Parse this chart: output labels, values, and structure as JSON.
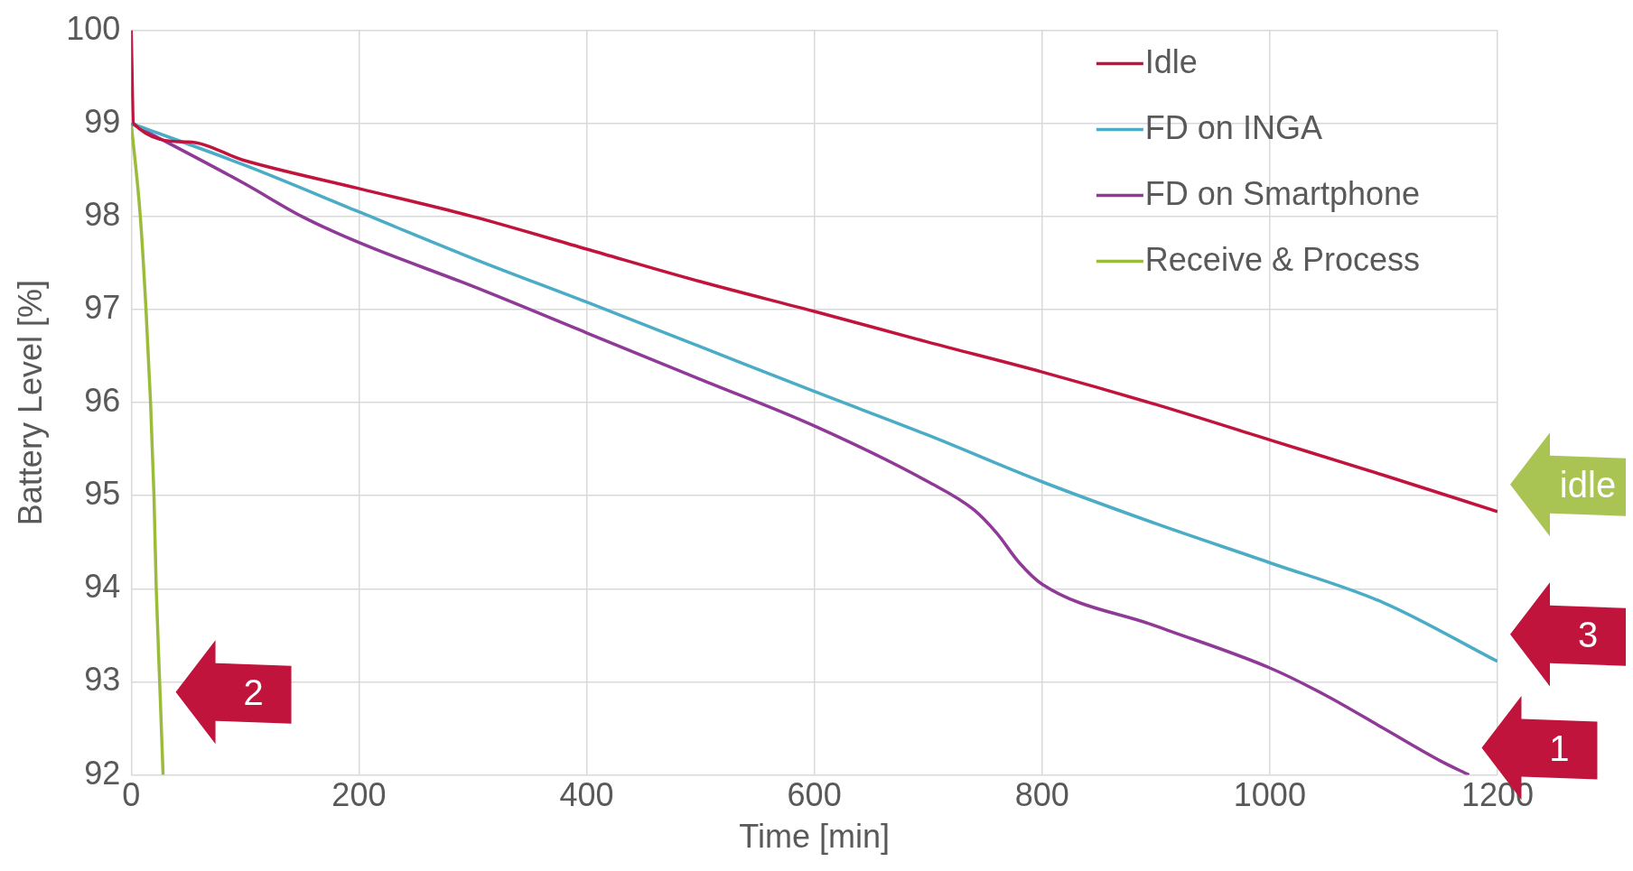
{
  "chart_data": {
    "type": "line",
    "xlabel": "Time [min]",
    "ylabel": "Battery Level [%]",
    "xlim": [
      0,
      1200
    ],
    "xticks": [
      0,
      200,
      400,
      600,
      800,
      1000,
      1200
    ],
    "ylim": [
      92,
      100
    ],
    "yticks": [
      92,
      93,
      94,
      95,
      96,
      97,
      98,
      99,
      100
    ],
    "grid": true,
    "legend": "top right",
    "marker": "none",
    "line_style": "solid",
    "series": [
      {
        "name": "Idle",
        "color": "#c0143c",
        "x": [
          0,
          2,
          50,
          100,
          200,
          300,
          400,
          500,
          600,
          700,
          800,
          900,
          1000,
          1100,
          1200
        ],
        "values": [
          100,
          99,
          98.8,
          98.6,
          98.3,
          98.0,
          97.65,
          97.3,
          96.98,
          96.65,
          96.33,
          95.98,
          95.6,
          95.22,
          94.83
        ]
      },
      {
        "name": "FD on INGA",
        "color": "#4bacc6",
        "x": [
          0,
          100,
          200,
          300,
          400,
          500,
          600,
          700,
          800,
          900,
          1000,
          1100,
          1200
        ],
        "values": [
          99,
          98.55,
          98.05,
          97.55,
          97.08,
          96.6,
          96.12,
          95.65,
          95.15,
          94.7,
          94.28,
          93.85,
          93.22
        ]
      },
      {
        "name": "FD on Smartphone",
        "color": "#8e3a96",
        "x": [
          0,
          100,
          150,
          200,
          300,
          400,
          500,
          600,
          700,
          740,
          760,
          780,
          800,
          900,
          1000,
          1050,
          1100,
          1150,
          1175
        ],
        "values": [
          99,
          98.35,
          98.0,
          97.72,
          97.25,
          96.75,
          96.25,
          95.75,
          95.15,
          94.85,
          94.6,
          94.28,
          94.05,
          93.6,
          93.15,
          92.85,
          92.5,
          92.15,
          92
        ]
      },
      {
        "name": "Receive & Process",
        "color": "#9bbb3b",
        "x": [
          0,
          8,
          13,
          17,
          20,
          22,
          25,
          28
        ],
        "values": [
          99,
          98,
          97,
          96,
          95,
          94,
          93,
          92
        ]
      }
    ],
    "annotations": [
      {
        "text": "idle",
        "x": 1200,
        "y": 94.83
      },
      {
        "text": "3",
        "x": 1200,
        "y": 93.22
      },
      {
        "text": "2",
        "x": 28,
        "y": 92.6
      },
      {
        "text": "1",
        "x": 1175,
        "y": 92
      }
    ]
  }
}
